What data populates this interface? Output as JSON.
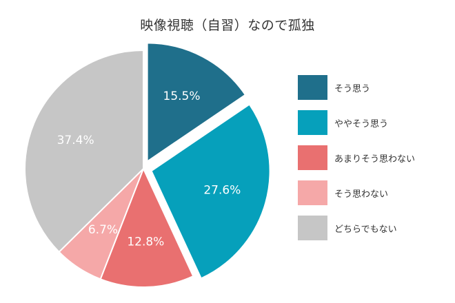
{
  "chart_data": {
    "type": "pie",
    "title": "映像視聴（自習）なので孤独",
    "slices": [
      {
        "label": "そう思う",
        "value": 15.5,
        "value_label": "15.5%",
        "color": "#1f6f8b",
        "exploded": true
      },
      {
        "label": "ややそう思う",
        "value": 27.6,
        "value_label": "27.6%",
        "color": "#06a0bb",
        "exploded": true
      },
      {
        "label": "あまりそう思わない",
        "value": 12.8,
        "value_label": "12.8%",
        "color": "#e97070",
        "exploded": false
      },
      {
        "label": "そう思わない",
        "value": 6.7,
        "value_label": "6.7%",
        "color": "#f5a8a8",
        "exploded": false
      },
      {
        "label": "どちらでもない",
        "value": 37.4,
        "value_label": "37.4%",
        "color": "#c6c6c6",
        "exploded": false
      }
    ],
    "legend_position": "right"
  }
}
